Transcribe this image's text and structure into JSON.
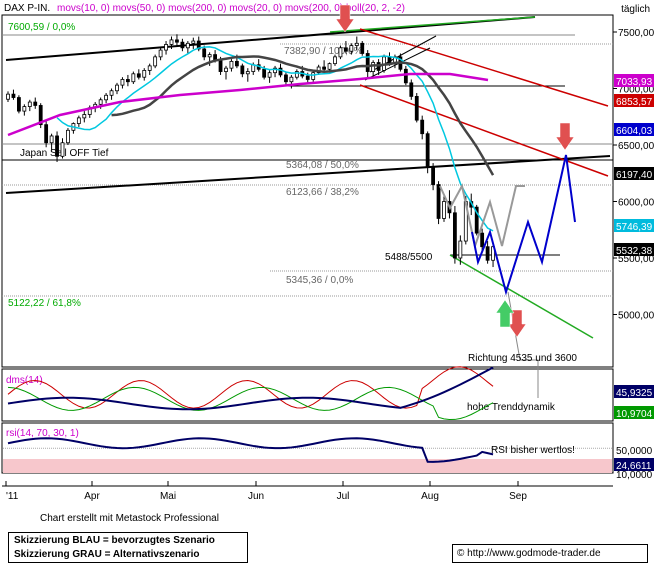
{
  "header": {
    "symbol": "DAX P-IN.",
    "indicators": "movs(10, 0) movs(50, 0) movs(200, 0) movs(20, 0) movs(200, 0) boll(20, 2, -2)",
    "timeframe": "täglich"
  },
  "footer": {
    "credit": "Chart erstellt mit Metastock Professional",
    "legend_blue": "Skizzierung BLAU = bevorzugtes Szenario",
    "legend_grey": "Skizzierung GRAU = Alternativszenario",
    "source": "© http://www.godmode-trader.de"
  },
  "chart_data": [
    {
      "type": "candlestick",
      "title": "DAX P-IN.",
      "y_ticks": [
        "7500,00",
        "7000,00",
        "6500,00",
        "6000,00",
        "5500,00",
        "5000,00"
      ],
      "x_ticks": [
        "'11",
        "Apr",
        "Mai",
        "Jun",
        "Jul",
        "Aug",
        "Sep"
      ],
      "price_tags": [
        {
          "label": "7033,93",
          "color": "#cc00cc"
        },
        {
          "label": "6853,57",
          "color": "#cc0000"
        },
        {
          "label": "6604,03",
          "color": "#0000cc"
        },
        {
          "label": "6197,40",
          "color": "#000000"
        },
        {
          "label": "5746,39",
          "color": "#00bbdd"
        },
        {
          "label": "5532,38",
          "color": "#000000"
        }
      ],
      "levels": [
        {
          "label": "7600,59 / 0,0%",
          "value": 7600.59,
          "color": "#00aa00"
        },
        {
          "label": "7382,90 / 100,0%",
          "value": 7382.9,
          "color": "#666666"
        },
        {
          "label": "5364,08 / 50,0%",
          "value": 5364.08,
          "color": "#666666"
        },
        {
          "label": "6123,66 / 38,2%",
          "value": 6123.66,
          "color": "#666666"
        },
        {
          "label": "5345,36 / 0,0%",
          "value": 5345.36,
          "color": "#666666"
        },
        {
          "label": "5122,22 / 61,8%",
          "value": 5122.22,
          "color": "#00aa00"
        }
      ],
      "annotations": [
        "Japan Sell OFF Tief",
        "5488/5500",
        "Richtung 4535 und 3600",
        "hohe Trenddynamik"
      ],
      "candles": [
        [
          6905,
          6975,
          6880,
          6950
        ],
        [
          6950,
          6990,
          6900,
          6920
        ],
        [
          6920,
          6940,
          6780,
          6800
        ],
        [
          6800,
          6860,
          6760,
          6840
        ],
        [
          6840,
          6900,
          6800,
          6880
        ],
        [
          6880,
          6920,
          6820,
          6850
        ],
        [
          6850,
          6870,
          6650,
          6680
        ],
        [
          6680,
          6720,
          6480,
          6520
        ],
        [
          6520,
          6600,
          6450,
          6580
        ],
        [
          6580,
          6620,
          6350,
          6400
        ],
        [
          6400,
          6560,
          6380,
          6520
        ],
        [
          6520,
          6650,
          6500,
          6630
        ],
        [
          6630,
          6700,
          6600,
          6690
        ],
        [
          6690,
          6760,
          6660,
          6740
        ],
        [
          6740,
          6800,
          6700,
          6770
        ],
        [
          6770,
          6850,
          6740,
          6830
        ],
        [
          6830,
          6880,
          6790,
          6860
        ],
        [
          6860,
          6920,
          6820,
          6900
        ],
        [
          6900,
          6960,
          6870,
          6940
        ],
        [
          6940,
          7000,
          6900,
          6980
        ],
        [
          6980,
          7050,
          6950,
          7030
        ],
        [
          7030,
          7100,
          7000,
          7080
        ],
        [
          7080,
          7120,
          7020,
          7060
        ],
        [
          7060,
          7150,
          7040,
          7130
        ],
        [
          7130,
          7170,
          7080,
          7100
        ],
        [
          7100,
          7180,
          7070,
          7160
        ],
        [
          7160,
          7220,
          7120,
          7200
        ],
        [
          7200,
          7300,
          7180,
          7280
        ],
        [
          7280,
          7360,
          7250,
          7340
        ],
        [
          7340,
          7420,
          7300,
          7390
        ],
        [
          7390,
          7460,
          7350,
          7430
        ],
        [
          7430,
          7480,
          7380,
          7410
        ],
        [
          7410,
          7440,
          7330,
          7360
        ],
        [
          7360,
          7420,
          7310,
          7400
        ],
        [
          7400,
          7450,
          7350,
          7420
        ],
        [
          7420,
          7460,
          7330,
          7350
        ],
        [
          7350,
          7380,
          7250,
          7280
        ],
        [
          7280,
          7320,
          7200,
          7300
        ],
        [
          7300,
          7340,
          7230,
          7250
        ],
        [
          7250,
          7280,
          7120,
          7150
        ],
        [
          7150,
          7200,
          7080,
          7180
        ],
        [
          7180,
          7260,
          7150,
          7240
        ],
        [
          7240,
          7300,
          7180,
          7200
        ],
        [
          7200,
          7220,
          7100,
          7130
        ],
        [
          7130,
          7180,
          7060,
          7150
        ],
        [
          7150,
          7230,
          7120,
          7210
        ],
        [
          7210,
          7260,
          7150,
          7170
        ],
        [
          7170,
          7200,
          7080,
          7100
        ],
        [
          7100,
          7160,
          7050,
          7140
        ],
        [
          7140,
          7200,
          7100,
          7180
        ],
        [
          7180,
          7220,
          7100,
          7120
        ],
        [
          7120,
          7150,
          7020,
          7060
        ],
        [
          7060,
          7120,
          7000,
          7100
        ],
        [
          7100,
          7170,
          7080,
          7150
        ],
        [
          7150,
          7200,
          7090,
          7110
        ],
        [
          7110,
          7140,
          7040,
          7080
        ],
        [
          7080,
          7160,
          7060,
          7140
        ],
        [
          7140,
          7210,
          7120,
          7190
        ],
        [
          7190,
          7250,
          7150,
          7170
        ],
        [
          7170,
          7230,
          7140,
          7220
        ],
        [
          7220,
          7300,
          7200,
          7280
        ],
        [
          7280,
          7380,
          7260,
          7360
        ],
        [
          7360,
          7420,
          7310,
          7330
        ],
        [
          7330,
          7400,
          7300,
          7380
        ],
        [
          7380,
          7460,
          7340,
          7400
        ],
        [
          7400,
          7420,
          7290,
          7310
        ],
        [
          7310,
          7340,
          7100,
          7150
        ],
        [
          7150,
          7250,
          7100,
          7230
        ],
        [
          7230,
          7260,
          7120,
          7160
        ],
        [
          7160,
          7300,
          7140,
          7280
        ],
        [
          7280,
          7320,
          7200,
          7220
        ],
        [
          7220,
          7300,
          7180,
          7280
        ],
        [
          7280,
          7310,
          7150,
          7170
        ],
        [
          7170,
          7200,
          7030,
          7050
        ],
        [
          7050,
          7080,
          6900,
          6930
        ],
        [
          6930,
          6960,
          6700,
          6720
        ],
        [
          6720,
          6760,
          6550,
          6600
        ],
        [
          6600,
          6620,
          6250,
          6300
        ],
        [
          6300,
          6340,
          6100,
          6150
        ],
        [
          6150,
          6180,
          5800,
          5850
        ],
        [
          5850,
          6050,
          5820,
          6000
        ],
        [
          6000,
          6100,
          5850,
          5900
        ],
        [
          5900,
          5960,
          5450,
          5500
        ],
        [
          5500,
          5700,
          5440,
          5650
        ],
        [
          5650,
          6050,
          5620,
          6000
        ],
        [
          6000,
          6070,
          5880,
          5950
        ],
        [
          5950,
          5970,
          5700,
          5720
        ],
        [
          5720,
          5760,
          5550,
          5600
        ],
        [
          5600,
          5650,
          5450,
          5480
        ],
        [
          5480,
          5620,
          5420,
          5600
        ]
      ]
    },
    {
      "type": "line",
      "title": "dms(14)",
      "y_ticks": [
        "45,9325",
        "10,9704"
      ]
    },
    {
      "type": "line",
      "title": "rsi(14, 70, 30, 1)",
      "y_ticks": [
        "50,0000",
        "24,6611",
        "10,0000"
      ],
      "annotation": "RSI bisher wertlos!"
    }
  ]
}
